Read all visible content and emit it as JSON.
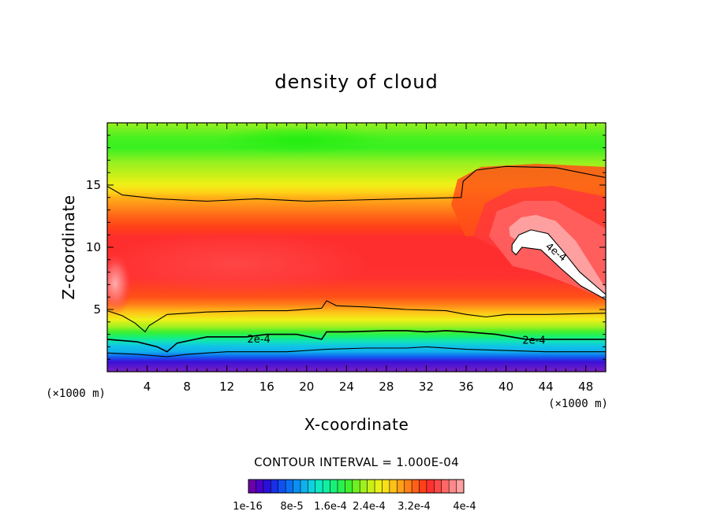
{
  "chart_data": {
    "type": "heatmap",
    "title": "density of cloud",
    "xlabel": "X-coordinate",
    "ylabel": "Z-coordinate",
    "x_unit": "(×1000 m)",
    "xlim": [
      0,
      50
    ],
    "ylim": [
      0,
      20
    ],
    "x_ticks": [
      4,
      8,
      12,
      16,
      20,
      24,
      28,
      32,
      36,
      40,
      44,
      48
    ],
    "y_ticks": [
      5,
      10,
      15
    ],
    "contour_interval_text": "CONTOUR INTERVAL = 1.000E-04",
    "colorbar_labels": [
      "1e-16",
      "8e-5",
      "1.6e-4",
      "2.4e-4",
      "3.2e-4",
      "4e-4"
    ],
    "colorbar_colors": [
      "#6a00a8",
      "#4a00c8",
      "#2a10d8",
      "#1830e8",
      "#1050f0",
      "#0a70f2",
      "#0a90f2",
      "#10b0ec",
      "#10d0e0",
      "#10e8c0",
      "#10f0a0",
      "#18f078",
      "#28f050",
      "#40f030",
      "#70f020",
      "#a0f020",
      "#c8f018",
      "#e8f018",
      "#f8e018",
      "#ffc018",
      "#ffa018",
      "#ff8018",
      "#ff6018",
      "#ff4018",
      "#ff3030",
      "#ff4848",
      "#ff6868",
      "#ff8888",
      "#ffa0a0"
    ],
    "contour_labels": [
      {
        "text": "2e-4",
        "x": 15.2,
        "y": 2.6,
        "angle": 0
      },
      {
        "text": "2e-4",
        "x": 42.8,
        "y": 2.5,
        "angle": 0
      },
      {
        "text": "4e-4",
        "x": 45.0,
        "y": 9.6,
        "angle": 38
      }
    ],
    "bands": [
      {
        "color": "#ffa0a0",
        "points": [
          [
            40.3,
            11.6
          ],
          [
            41.5,
            12.4
          ],
          [
            43,
            12.6
          ],
          [
            45,
            12.1
          ],
          [
            47,
            10.5
          ],
          [
            48.5,
            8.6
          ],
          [
            50,
            6.7
          ],
          [
            50,
            6.0
          ],
          [
            47.5,
            7.4
          ],
          [
            45,
            9.2
          ],
          [
            43,
            10.6
          ],
          [
            41,
            10.6
          ],
          [
            40.4,
            10.9
          ]
        ]
      },
      {
        "color": "#ffffff",
        "points": [
          [
            40.6,
            10.2
          ],
          [
            41.3,
            11.0
          ],
          [
            42.5,
            11.4
          ],
          [
            44.2,
            11.1
          ],
          [
            45.7,
            9.7
          ],
          [
            47.4,
            8.0
          ],
          [
            50,
            6.2
          ],
          [
            50,
            5.8
          ],
          [
            47.5,
            6.9
          ],
          [
            45.5,
            8.3
          ],
          [
            43.5,
            9.8
          ],
          [
            41.6,
            10.0
          ],
          [
            41.0,
            9.4
          ],
          [
            40.6,
            9.7
          ]
        ]
      }
    ],
    "contour_lines": [
      {
        "level": "4e-4",
        "points": [
          [
            40.6,
            10.2
          ],
          [
            41.3,
            11.0
          ],
          [
            42.5,
            11.4
          ],
          [
            44.2,
            11.1
          ],
          [
            45.7,
            9.7
          ],
          [
            47.4,
            8.0
          ],
          [
            50,
            6.2
          ],
          [
            50,
            5.8
          ],
          [
            47.5,
            6.9
          ],
          [
            45.5,
            8.3
          ],
          [
            43.5,
            9.8
          ],
          [
            41.6,
            10.0
          ],
          [
            41.0,
            9.4
          ],
          [
            40.6,
            9.7
          ],
          [
            40.6,
            10.2
          ]
        ]
      },
      {
        "level": "3e-4",
        "points": [
          [
            0,
            14.9
          ],
          [
            1.5,
            14.2
          ],
          [
            5,
            13.9
          ],
          [
            10,
            13.7
          ],
          [
            15,
            13.9
          ],
          [
            20,
            13.7
          ],
          [
            25,
            13.8
          ],
          [
            30,
            13.9
          ],
          [
            35.5,
            14.0
          ],
          [
            35.7,
            15.3
          ],
          [
            37,
            16.2
          ],
          [
            40,
            16.5
          ],
          [
            45,
            16.4
          ],
          [
            50,
            15.6
          ]
        ]
      },
      {
        "level": "3e-4",
        "points": [
          [
            0,
            4.9
          ],
          [
            1.5,
            4.5
          ],
          [
            2.8,
            3.9
          ],
          [
            3.8,
            3.2
          ],
          [
            4.2,
            3.7
          ],
          [
            6,
            4.6
          ],
          [
            10,
            4.8
          ],
          [
            15,
            4.9
          ],
          [
            18,
            4.9
          ],
          [
            21.5,
            5.1
          ],
          [
            22,
            5.7
          ],
          [
            23,
            5.3
          ],
          [
            26,
            5.2
          ],
          [
            30,
            5.0
          ],
          [
            34,
            4.9
          ],
          [
            36,
            4.6
          ],
          [
            38,
            4.4
          ],
          [
            40,
            4.6
          ],
          [
            44,
            4.6
          ],
          [
            50,
            4.7
          ]
        ]
      },
      {
        "level": "2e-4",
        "points": [
          [
            0,
            2.6
          ],
          [
            3,
            2.4
          ],
          [
            5,
            2.0
          ],
          [
            6.0,
            1.6
          ],
          [
            7,
            2.3
          ],
          [
            10,
            2.8
          ],
          [
            14,
            2.8
          ],
          [
            16,
            3.0
          ],
          [
            19,
            3.0
          ],
          [
            21.5,
            2.6
          ],
          [
            22,
            3.2
          ],
          [
            24,
            3.2
          ],
          [
            28,
            3.3
          ],
          [
            30,
            3.3
          ],
          [
            32,
            3.2
          ],
          [
            34,
            3.3
          ],
          [
            36,
            3.2
          ],
          [
            39,
            3.0
          ],
          [
            42,
            2.6
          ],
          [
            46,
            2.6
          ],
          [
            50,
            2.6
          ]
        ]
      },
      {
        "level": "1e-4",
        "points": [
          [
            0,
            1.5
          ],
          [
            3,
            1.4
          ],
          [
            6,
            1.2
          ],
          [
            8,
            1.4
          ],
          [
            12,
            1.6
          ],
          [
            18,
            1.6
          ],
          [
            22,
            1.8
          ],
          [
            26,
            1.9
          ],
          [
            30,
            1.9
          ],
          [
            32,
            2.0
          ],
          [
            36,
            1.8
          ],
          [
            40,
            1.7
          ],
          [
            44,
            1.6
          ],
          [
            50,
            1.6
          ]
        ]
      }
    ]
  }
}
